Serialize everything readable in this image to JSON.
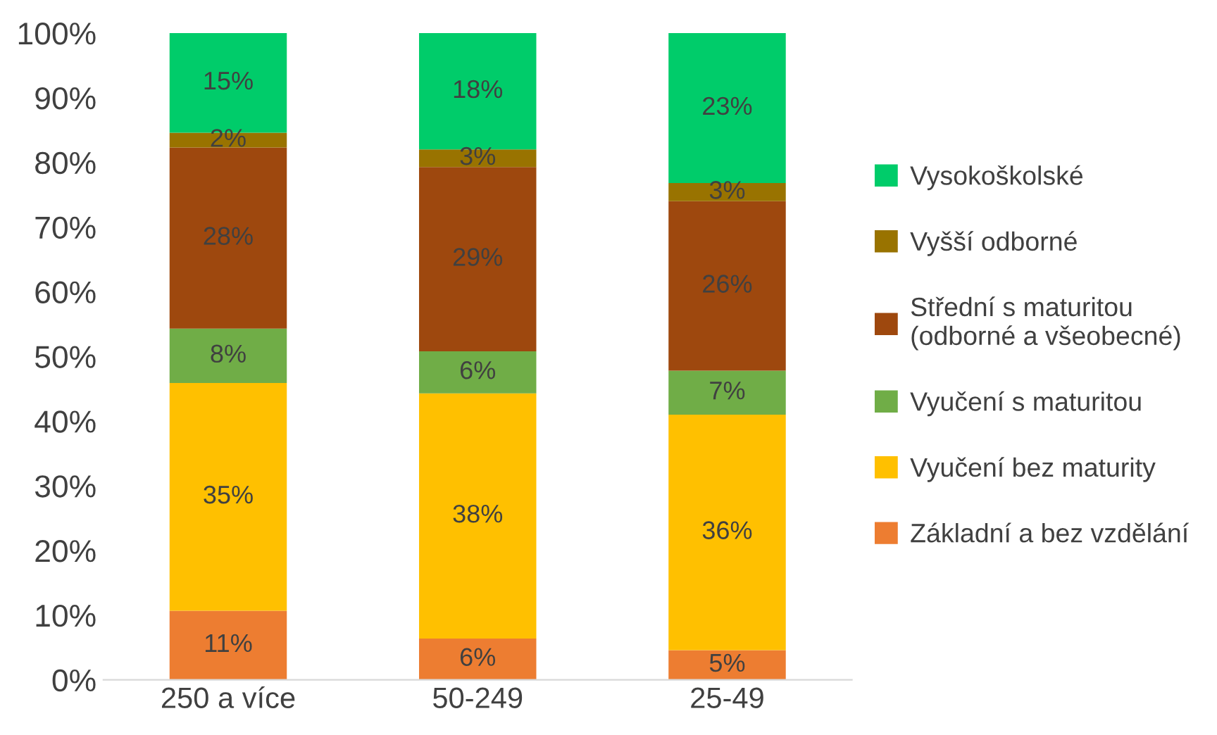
{
  "chart_data": {
    "type": "bar",
    "stacked": true,
    "categories": [
      "250 a více",
      "50-249",
      "25-49"
    ],
    "series": [
      {
        "name": "Základní a bez vzdělání",
        "color": "#ed7d31",
        "values": [
          10.7,
          6.4,
          4.6
        ],
        "value_labels": [
          "11%",
          "6%",
          "5%"
        ]
      },
      {
        "name": "Vyučení bez maturity",
        "color": "#ffc000",
        "values": [
          35.2,
          37.9,
          36.4
        ],
        "value_labels": [
          "35%",
          "38%",
          "36%"
        ]
      },
      {
        "name": "Vyučení s maturitou",
        "color": "#70ad47",
        "values": [
          8.4,
          6.5,
          6.8
        ],
        "value_labels": [
          "8%",
          "6%",
          "7%"
        ]
      },
      {
        "name": "Střední s maturitou\n(odborné a všeobecné)",
        "color": "#9e480e",
        "values": [
          28.0,
          28.5,
          26.2
        ],
        "value_labels": [
          "28%",
          "29%",
          "26%"
        ]
      },
      {
        "name": "Vyšší odborné",
        "color": "#997300",
        "values": [
          2.3,
          2.7,
          2.8
        ],
        "value_labels": [
          "2%",
          "3%",
          "3%"
        ]
      },
      {
        "name": "Vysokoškolské",
        "color": "#00cc6a",
        "values": [
          15.4,
          18.0,
          23.2
        ],
        "value_labels": [
          "15%",
          "18%",
          "23%"
        ]
      }
    ],
    "ylim": [
      0,
      100
    ],
    "yticks": [
      {
        "value": 0,
        "label": "0%"
      },
      {
        "value": 10,
        "label": "10%"
      },
      {
        "value": 20,
        "label": "20%"
      },
      {
        "value": 30,
        "label": "30%"
      },
      {
        "value": 40,
        "label": "40%"
      },
      {
        "value": 50,
        "label": "50%"
      },
      {
        "value": 60,
        "label": "60%"
      },
      {
        "value": 70,
        "label": "70%"
      },
      {
        "value": 80,
        "label": "80%"
      },
      {
        "value": 90,
        "label": "90%"
      },
      {
        "value": 100,
        "label": "100%"
      }
    ],
    "grid": false,
    "legend": "right"
  }
}
